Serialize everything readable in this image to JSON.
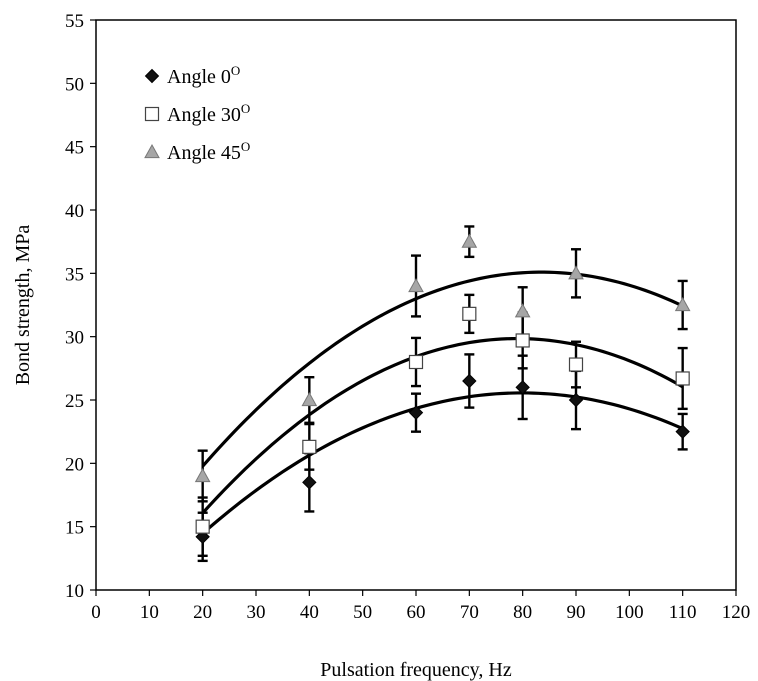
{
  "chart_data": {
    "type": "scatter",
    "title": "",
    "xlabel": "Pulsation frequency, Hz",
    "ylabel": "Bond strength, MPa",
    "xlim": [
      0,
      120
    ],
    "ylim": [
      10,
      55
    ],
    "xticks": [
      0,
      10,
      20,
      30,
      40,
      50,
      60,
      70,
      80,
      90,
      100,
      110,
      120
    ],
    "yticks": [
      10,
      15,
      20,
      25,
      30,
      35,
      40,
      45,
      50,
      55
    ],
    "grid": false,
    "legend_position": "top-left",
    "series": [
      {
        "name": "Angle 0",
        "superscript": "O",
        "marker": "diamond",
        "color": "#111111",
        "x": [
          20,
          40,
          60,
          70,
          80,
          90,
          110
        ],
        "y": [
          14.2,
          18.5,
          24.0,
          26.5,
          26.0,
          25.0,
          22.5
        ],
        "error": [
          1.9,
          2.3,
          1.5,
          2.1,
          2.5,
          2.3,
          1.4
        ],
        "fit": [
          -0.0031,
          0.495,
          5.8
        ]
      },
      {
        "name": "Angle 30",
        "superscript": "O",
        "marker": "square",
        "color": "#ffffff",
        "x": [
          20,
          40,
          60,
          70,
          80,
          90,
          110
        ],
        "y": [
          15.0,
          21.3,
          28.0,
          31.8,
          29.7,
          27.8,
          26.7
        ],
        "error": [
          2.3,
          1.8,
          1.9,
          1.5,
          2.2,
          1.8,
          2.4
        ],
        "fit": [
          -0.00396,
          0.6255,
          5.15
        ]
      },
      {
        "name": "Angle 45",
        "superscript": "O",
        "marker": "triangle",
        "color": "#a6a6a6",
        "x": [
          20,
          40,
          60,
          70,
          80,
          90,
          110
        ],
        "y": [
          19.0,
          25.0,
          34.0,
          37.5,
          32.0,
          35.0,
          32.5
        ],
        "error": [
          2.0,
          1.8,
          2.4,
          1.2,
          1.9,
          1.9,
          1.9
        ],
        "fit": [
          -0.0038,
          0.6346,
          8.6
        ]
      }
    ]
  }
}
